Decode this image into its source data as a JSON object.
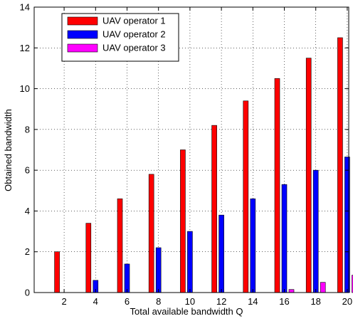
{
  "chart_data": {
    "type": "bar",
    "title": "",
    "xlabel": "Total available bandwidth Q",
    "ylabel": "Obtained bandwidth",
    "categories": [
      "2",
      "4",
      "6",
      "8",
      "10",
      "12",
      "14",
      "16",
      "18",
      "20"
    ],
    "ylim": [
      0,
      14
    ],
    "yticks": [
      "0",
      "2",
      "4",
      "6",
      "8",
      "10",
      "12",
      "14"
    ],
    "grid": true,
    "grid_style": "dotted",
    "legend_position": "top-left",
    "series": [
      {
        "name": "UAV operator 1",
        "color": "#ff0000",
        "values": [
          2.0,
          3.4,
          4.6,
          5.8,
          7.0,
          8.2,
          9.4,
          10.5,
          11.5,
          12.5
        ]
      },
      {
        "name": "UAV operator 2",
        "color": "#0000ff",
        "values": [
          0.0,
          0.6,
          1.4,
          2.2,
          3.0,
          3.8,
          4.6,
          5.3,
          6.0,
          6.65
        ]
      },
      {
        "name": "UAV operator 3",
        "color": "#ff00ff",
        "values": [
          0.0,
          0.0,
          0.0,
          0.0,
          0.0,
          0.0,
          0.0,
          0.15,
          0.5,
          0.85
        ]
      }
    ]
  }
}
